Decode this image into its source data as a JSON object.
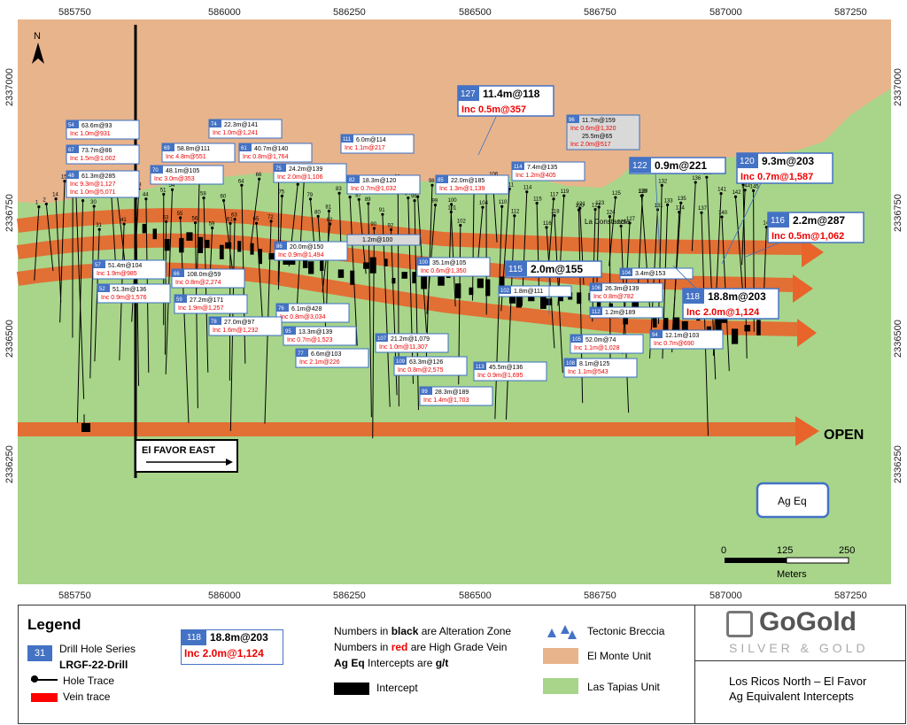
{
  "map": {
    "x_ticks": [
      "585750",
      "586000",
      "586250",
      "586500",
      "586750",
      "587000",
      "587250"
    ],
    "y_ticks": [
      "2337000",
      "2336750",
      "2336500",
      "2336250"
    ],
    "north_label": "N",
    "zone_label": "El FAVOR EAST",
    "open_label": "OPEN",
    "place_label": "La Constancia",
    "ag_eq_label": "Ag Eq",
    "scale": {
      "labels": [
        "0",
        "125",
        "250"
      ],
      "unit": "Meters"
    },
    "colors": {
      "el_monte": "#e8b48c",
      "las_tapias": "#a8d58a",
      "vein": "#e8642a",
      "label_blue": "#4472c4",
      "red_text": "#e00000"
    }
  },
  "hole_labels": [
    "1",
    "2",
    "14",
    "15",
    "16",
    "17",
    "29",
    "30",
    "31",
    "33",
    "40",
    "41",
    "42",
    "43",
    "44",
    "51",
    "53",
    "54",
    "55",
    "56",
    "57",
    "58",
    "59",
    "60",
    "61",
    "63",
    "64",
    "65",
    "66",
    "72",
    "73",
    "75",
    "77",
    "78",
    "79",
    "80",
    "81",
    "82",
    "83",
    "84",
    "87",
    "89",
    "90",
    "91",
    "92",
    "93",
    "94",
    "96",
    "97",
    "98",
    "99",
    "100",
    "101",
    "102",
    "103",
    "104",
    "105",
    "106",
    "110",
    "111",
    "112",
    "114",
    "115",
    "116",
    "117",
    "118",
    "119",
    "120",
    "121",
    "122",
    "123",
    "124",
    "125",
    "126",
    "127",
    "128",
    "130",
    "131",
    "132",
    "133",
    "134",
    "135",
    "136",
    "137",
    "138",
    "140",
    "141",
    "142",
    "143",
    "144",
    "145",
    "146"
  ],
  "intercepts": [
    {
      "id": "54",
      "black": "63.6m@93",
      "red": "Inc 1.0m@931"
    },
    {
      "id": "67",
      "black": "73.7m@86",
      "red": "Inc 1.5m@1,002"
    },
    {
      "id": "48",
      "black": "61.3m@285",
      "red": "Inc 9.3m@1,127",
      "red2": "Inc 1.0m@5,071"
    },
    {
      "id": "74",
      "black": "22.3m@141",
      "red": "Inc 1.0m@1,241"
    },
    {
      "id": "69",
      "black": "58.8m@111",
      "red": "Inc 4.8m@551"
    },
    {
      "id": "61",
      "black": "40.7m@140",
      "red": "Inc 0.8m@1,764"
    },
    {
      "id": "70",
      "black": "48.1m@105",
      "red": "Inc 3.0m@353"
    },
    {
      "id": "75",
      "black": "24.2m@139",
      "red": "Inc 2.0m@1,106"
    },
    {
      "id": "111",
      "black": "6.0m@114",
      "red": "Inc 1.1m@217"
    },
    {
      "id": "82",
      "black": "18.3m@120",
      "red": "Inc 0.7m@1,032"
    },
    {
      "id": "85",
      "black": "22.0m@185",
      "red": "Inc 1.3m@1,139"
    },
    {
      "id": "114",
      "black": "7.4m@135",
      "red": "Inc 1.2m@405"
    },
    {
      "id": "96",
      "black": "11.7m@159",
      "red": "Inc 0.6m@1,320",
      "black2": "25.5m@65",
      "red2": "Inc 2.0m@517"
    },
    {
      "id": "",
      "black": "1.2m@100",
      "red": ""
    },
    {
      "id": "86",
      "black": "20.0m@150",
      "red": "Inc 0.9m@1,494"
    },
    {
      "id": "57",
      "black": "51.4m@104",
      "red": "Inc 1.9m@985"
    },
    {
      "id": "66",
      "black": "108.0m@59",
      "red": "Inc 0.8m@2,274"
    },
    {
      "id": "52",
      "black": "51.3m@136",
      "red": "Inc 0.9m@1,576"
    },
    {
      "id": "59",
      "black": "27.2m@171",
      "red": "Inc 1.9m@1,257"
    },
    {
      "id": "76",
      "black": "6.1m@428",
      "red": "Inc 0.8m@3,034"
    },
    {
      "id": "78",
      "black": "27.0m@97",
      "red": "Inc 1.6m@1,232"
    },
    {
      "id": "95",
      "black": "13.3m@139",
      "red": "Inc 0.7m@1,523"
    },
    {
      "id": "77",
      "black": "6.6m@103",
      "red": "Inc 2.1m@226"
    },
    {
      "id": "100",
      "black": "35.1m@105",
      "red": "Inc 0.6m@1,350"
    },
    {
      "id": "102",
      "black": "1.8m@111",
      "red": ""
    },
    {
      "id": "107",
      "black": "21.2m@1,079",
      "red": "Inc 1.0m@11,307"
    },
    {
      "id": "109",
      "black": "63.3m@126",
      "red": "Inc 0.8m@2,575"
    },
    {
      "id": "113",
      "black": "45.5m@136",
      "red": "Inc 0.9m@1,695"
    },
    {
      "id": "99",
      "black": "28.3m@189",
      "red": "Inc 1.4m@1,703"
    },
    {
      "id": "104",
      "black": "3.4m@153",
      "red": ""
    },
    {
      "id": "106",
      "black": "26.3m@139",
      "red": "Inc 0.8m@782"
    },
    {
      "id": "112",
      "black": "1.2m@189",
      "red": ""
    },
    {
      "id": "105",
      "black": "52.0m@74",
      "red": "Inc 1.1m@1,028"
    },
    {
      "id": "108",
      "black": "8.1m@125",
      "red": "Inc 1.1m@543"
    },
    {
      "id": "94",
      "black": "12.1m@103",
      "red": "Inc 0.7m@690"
    }
  ],
  "big_intercepts": [
    {
      "id": "127",
      "black": "11.4m@118",
      "red": "Inc 0.5m@357"
    },
    {
      "id": "122",
      "black": "0.9m@221",
      "red": ""
    },
    {
      "id": "120",
      "black": "9.3m@203",
      "red": "Inc 0.7m@1,587"
    },
    {
      "id": "116",
      "black": "2.2m@287",
      "red": "Inc 0.5m@1,062"
    },
    {
      "id": "115",
      "black": "2.0m@155",
      "red": ""
    },
    {
      "id": "118",
      "black": "18.8m@203",
      "red": "Inc 2.0m@1,124"
    }
  ],
  "legend": {
    "title": "Legend",
    "drill_series_num": "31",
    "drill_series_label": "Drill Hole Series",
    "drill_series_code": "LRGF-22-Drill",
    "hole_trace": "Hole Trace",
    "vein_trace": "Vein trace",
    "example": {
      "id": "118",
      "black": "18.8m@203",
      "red": "Inc 2.0m@1,124"
    },
    "note_1a": "Numbers in ",
    "note_1b": "black",
    "note_1c": " are Alteration Zone",
    "note_2a": "Numbers in ",
    "note_2b": "red",
    "note_2c": " are High Grade Vein",
    "note_3a": "Ag Eq",
    "note_3b": " Intercepts are ",
    "note_3c": "g/t",
    "intercept": "Intercept",
    "breccia": "Tectonic Breccia",
    "el_monte": "El Monte Unit",
    "las_tapias": "Las Tapias Unit",
    "brand_name": "GoGold",
    "brand_sub": "SILVER & GOLD",
    "project_1": "Los Ricos North – El Favor",
    "project_2": "Ag Equivalent Intercepts"
  }
}
